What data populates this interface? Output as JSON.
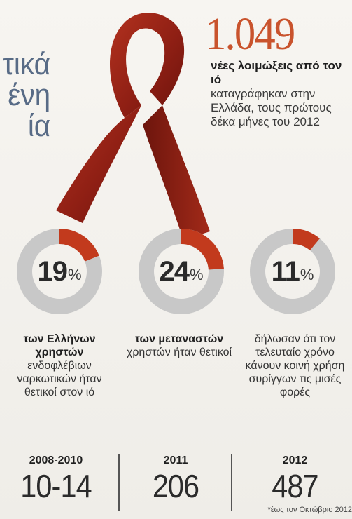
{
  "headline_fragment": [
    "τικά",
    "ένη",
    "ία"
  ],
  "highlight": {
    "number": "1.049",
    "caption_bold": "νέες λοιμώξεις από τον ιό",
    "caption_normal": "καταγράφηκαν στην Ελλάδα, τους πρώτους δέκα μήνες του 2012"
  },
  "colors": {
    "accent": "#c9532d",
    "ribbon": "#8f1f14",
    "donut_track": "#c8c8c8",
    "donut_fill": "#c23a1d",
    "headline": "#586b86"
  },
  "icons": [
    "awareness-ribbon-icon"
  ],
  "chart_data": [
    {
      "type": "pie",
      "style": "donut",
      "values": [
        19,
        81
      ],
      "highlighted_percent": 19,
      "label_number": "19",
      "label_unit": "%",
      "caption_bold": "των Ελλήνων χρηστών",
      "caption_normal": "ενδοφλέβιων ναρκωτικών ήταν θετικοί στον ιό"
    },
    {
      "type": "pie",
      "style": "donut",
      "values": [
        24,
        76
      ],
      "highlighted_percent": 24,
      "label_number": "24",
      "label_unit": "%",
      "caption_bold": "των μεταναστών",
      "caption_normal": "χρηστών ήταν θετικοί"
    },
    {
      "type": "pie",
      "style": "donut",
      "values": [
        11,
        89
      ],
      "highlighted_percent": 11,
      "label_number": "11",
      "label_unit": "%",
      "caption_bold": "",
      "caption_normal": "δήλωσαν ότι τον τελευταίο χρόνο κάνουν κοινή χρήση συρίγγων τις μισές φορές"
    },
    {
      "type": "table",
      "columns": [
        "2008-2010",
        "2011",
        "2012"
      ],
      "values": [
        "10-14",
        "206",
        "487"
      ],
      "footnote": "*έως τον Οκτώβριο 2012"
    }
  ]
}
